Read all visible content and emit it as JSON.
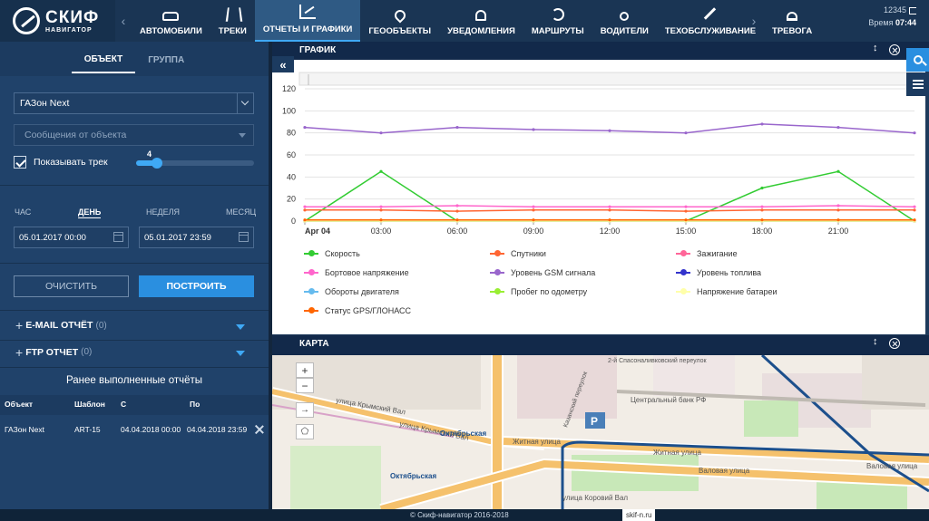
{
  "logo": {
    "title": "СКИФ",
    "subtitle": "НАВИГАТОР"
  },
  "nav": {
    "items": [
      {
        "label": "АВТОМОБИЛИ",
        "icon": "car-icon"
      },
      {
        "label": "ТРЕКИ",
        "icon": "road-icon"
      },
      {
        "label": "ОТЧЕТЫ И ГРАФИКИ",
        "icon": "chart-icon",
        "active": true
      },
      {
        "label": "ГЕООБЪЕКТЫ",
        "icon": "pin-icon"
      },
      {
        "label": "УВЕДОМЛЕНИЯ",
        "icon": "bell-icon"
      },
      {
        "label": "МАРШРУТЫ",
        "icon": "route-icon"
      },
      {
        "label": "ВОДИТЕЛИ",
        "icon": "user-icon"
      },
      {
        "label": "ТЕХОБСЛУЖИВАНИЕ",
        "icon": "wrench-icon"
      },
      {
        "label": "ТРЕВОГА",
        "icon": "alarm-icon"
      }
    ],
    "prev": "‹",
    "next": "›"
  },
  "user": {
    "id": "12345",
    "time_label": "Время",
    "time": "07:44"
  },
  "left": {
    "tabs": [
      "ОБЪЕКТ",
      "ГРУППА"
    ],
    "object_value": "ГАЗон Next",
    "messages_placeholder": "Сообщения от объекта",
    "show_track_label": "Показывать трек",
    "slider_value": "4",
    "slider_fraction": 0.18,
    "periods": [
      "ЧАС",
      "ДЕНЬ",
      "НЕДЕЛЯ",
      "МЕСЯЦ"
    ],
    "date_from": "05.01.2017 00:00",
    "date_to": "05.01.2017 23:59",
    "clear_label": "ОЧИСТИТЬ",
    "build_label": "ПОСТРОИТЬ",
    "email_label": "E-MAIL ОТЧЁТ",
    "email_count": "(0)",
    "ftp_label": "FTP ОТЧЕТ",
    "ftp_count": "(0)",
    "history_title": "Ранее выполненные отчёты",
    "table": {
      "headers": [
        "Объект",
        "Шаблон",
        "С",
        "По"
      ],
      "rows": [
        [
          "ГАЗон Next",
          "ART-15",
          "04.04.2018 00:00",
          "04.04.2018 23:59"
        ]
      ]
    }
  },
  "graph_panel": {
    "title": "ГРАФИК"
  },
  "map_panel": {
    "title": "КАРТА",
    "zoom_in": "+",
    "zoom_out": "−",
    "labels": [
      "улица Крымский Вал",
      "Октябрьская",
      "Житная улица",
      "Центральный банк РФ",
      "Валовая улица",
      "улица Коровий Вал",
      "Казанский переулок",
      "2-й Спасоналивковский переулок"
    ]
  },
  "chart_data": {
    "type": "line",
    "x_tick_labels": [
      "Apr 04",
      "03:00",
      "06:00",
      "09:00",
      "12:00",
      "15:00",
      "18:00",
      "21:00"
    ],
    "x": [
      "00:00",
      "03:00",
      "06:00",
      "09:00",
      "12:00",
      "15:00",
      "18:00",
      "21:00",
      "24:00"
    ],
    "ylim": [
      0,
      120
    ],
    "yticks": [
      0,
      20,
      40,
      60,
      80,
      100,
      120
    ],
    "grid": true,
    "series": [
      {
        "name": "Скорость",
        "color": "#33cc33",
        "values": [
          0,
          45,
          0,
          0,
          0,
          0,
          30,
          45,
          0
        ]
      },
      {
        "name": "Спутники",
        "color": "#ff6633",
        "values": [
          10,
          10,
          9,
          10,
          10,
          9,
          10,
          10,
          10
        ]
      },
      {
        "name": "Зажигание",
        "color": "#ff6699",
        "values": [
          0,
          0,
          0,
          0,
          0,
          0,
          0,
          0,
          0
        ]
      },
      {
        "name": "Бортовое напряжение",
        "color": "#ff66cc",
        "values": [
          13,
          13,
          14,
          13,
          13,
          13,
          13,
          14,
          13
        ]
      },
      {
        "name": "Уровень GSM сигнала",
        "color": "#9966cc",
        "values": [
          85,
          80,
          85,
          83,
          82,
          80,
          88,
          85,
          80
        ]
      },
      {
        "name": "Уровень топлива",
        "color": "#3333cc",
        "values": [
          0,
          0,
          0,
          0,
          0,
          0,
          0,
          0,
          0
        ]
      },
      {
        "name": "Обороты двигателя",
        "color": "#66bbee",
        "values": [
          0,
          0,
          0,
          0,
          0,
          0,
          0,
          0,
          0
        ]
      },
      {
        "name": "Пробег по одометру",
        "color": "#99ee33",
        "values": [
          0,
          0,
          0,
          0,
          0,
          0,
          0,
          0,
          0
        ]
      },
      {
        "name": "Напряжение батареи",
        "color": "#ffffaa",
        "values": [
          0,
          0,
          0,
          0,
          0,
          0,
          0,
          0,
          0
        ]
      },
      {
        "name": "Статус GPS/ГЛОНАСС",
        "color": "#ff6600",
        "values": [
          1,
          1,
          1,
          1,
          1,
          1,
          1,
          1,
          1
        ]
      }
    ]
  },
  "footer": {
    "copyright": "© Скиф-навигатор 2016-2018",
    "domain": "skif-n.ru"
  }
}
